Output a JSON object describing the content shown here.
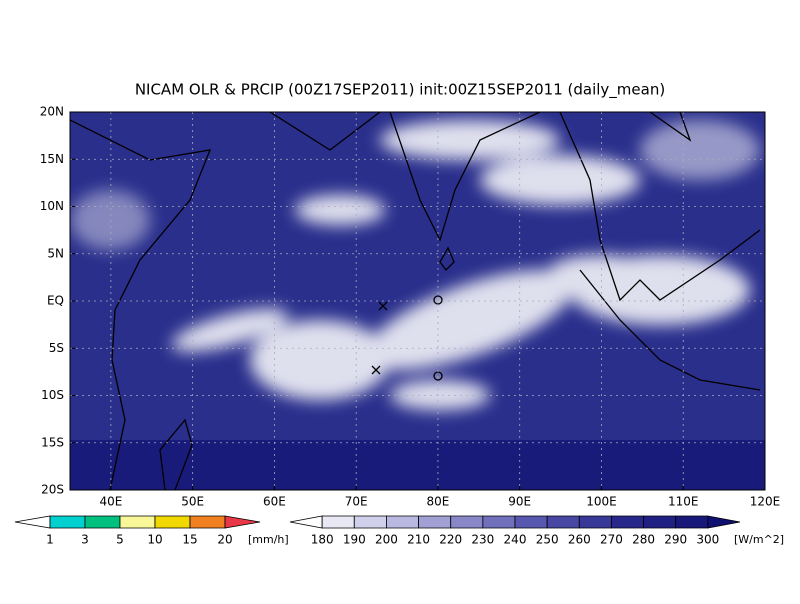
{
  "title": "NICAM OLR & PRCIP (00Z17SEP2011) init:00Z15SEP2011 (daily_mean)",
  "lat_labels": [
    "20N",
    "15N",
    "10N",
    "5N",
    "EQ",
    "5S",
    "10S",
    "15S",
    "20S"
  ],
  "lon_labels": [
    "40E",
    "50E",
    "60E",
    "70E",
    "80E",
    "90E",
    "100E",
    "110E",
    "120E"
  ],
  "precip_scale": {
    "labels": [
      "1",
      "3",
      "5",
      "10",
      "15",
      "20"
    ],
    "unit": "[mm/h]",
    "colors": [
      "#ffffff",
      "#00d0d0",
      "#00c080",
      "#f8f898",
      "#f0d800",
      "#f08020",
      "#e83848"
    ]
  },
  "olr_scale": {
    "labels": [
      "180",
      "190",
      "200",
      "210",
      "220",
      "230",
      "240",
      "250",
      "260",
      "270",
      "280",
      "290",
      "300"
    ],
    "unit": "[W/m^2]",
    "colors": [
      "#ffffff",
      "#e8e8f4",
      "#d0d0ea",
      "#b8b8e0",
      "#a0a0d4",
      "#8888c8",
      "#7070bc",
      "#5858b0",
      "#4848a4",
      "#383898",
      "#28288c",
      "#202084",
      "#18187a",
      "#101070"
    ]
  }
}
